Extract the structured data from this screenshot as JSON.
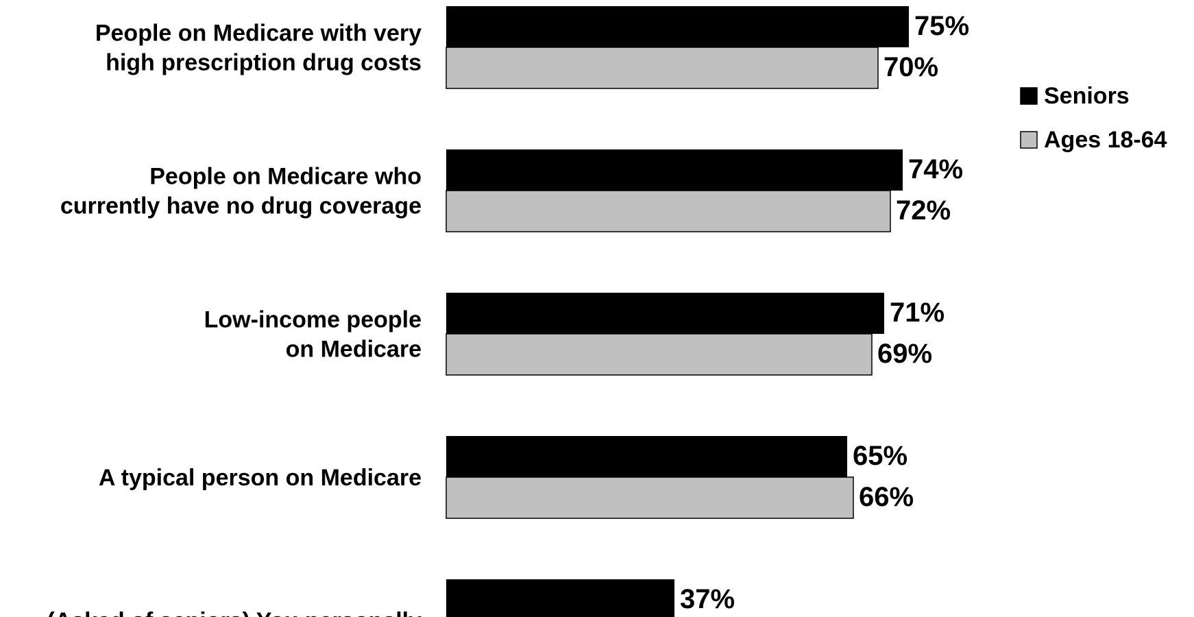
{
  "chart_data": {
    "type": "bar",
    "orientation": "horizontal",
    "title": "",
    "xlabel": "",
    "ylabel": "",
    "xlim": [
      0,
      100
    ],
    "grid": false,
    "legend_position": "right",
    "categories": [
      [
        "People on Medicare with very",
        "high prescription drug costs"
      ],
      [
        "People on Medicare who",
        "currently have no drug coverage"
      ],
      [
        "Low-income people",
        "on Medicare"
      ],
      [
        "A typical person on Medicare"
      ],
      [
        "(Asked of seniors) You personally"
      ]
    ],
    "series": [
      {
        "name": "Seniors",
        "color": "#000000",
        "values": [
          75,
          74,
          71,
          65,
          37
        ],
        "labels": [
          "75%",
          "74%",
          "71%",
          "65%",
          "37%"
        ]
      },
      {
        "name": "Ages 18-64",
        "color": "#c0c0c0",
        "values": [
          70,
          72,
          69,
          66,
          null
        ],
        "labels": [
          "70%",
          "72%",
          "69%",
          "66%",
          ""
        ]
      }
    ]
  }
}
